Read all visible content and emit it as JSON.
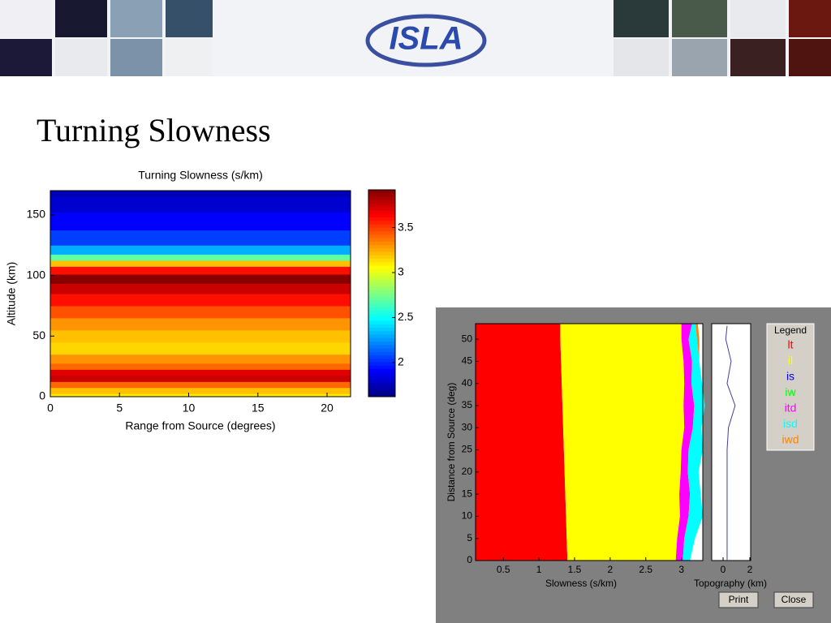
{
  "header": {
    "logo": "ISLA"
  },
  "slide_title": "Turning Slowness",
  "chart_data": [
    {
      "type": "heatmap",
      "title": "Turning Slowness (s/km)",
      "xlabel": "Range from Source (degrees)",
      "ylabel": "Altitude (km)",
      "xlim": [
        0,
        21.7
      ],
      "ylim": [
        0,
        170
      ],
      "xticks": [
        0,
        5,
        10,
        15,
        20
      ],
      "yticks": [
        0,
        50,
        100,
        150
      ],
      "y": [
        0,
        5,
        10,
        15,
        20,
        25,
        30,
        40,
        50,
        60,
        70,
        80,
        90,
        97,
        105,
        110,
        115,
        120,
        130,
        145,
        160,
        170
      ],
      "values": [
        3.1,
        3.2,
        3.4,
        3.75,
        3.7,
        3.4,
        3.3,
        3.15,
        3.2,
        3.3,
        3.45,
        3.6,
        3.75,
        3.9,
        3.6,
        3.2,
        2.7,
        2.3,
        2.05,
        1.9,
        1.8,
        1.75
      ],
      "colormap": "jet",
      "clim": [
        1.62,
        3.92
      ],
      "cticks": [
        2,
        2.5,
        3,
        3.5
      ]
    },
    {
      "type": "stacked_area",
      "xlabel": "Slowness (s/km)",
      "ylabel": "Distance from Source (deg)",
      "xlim": [
        0.11,
        3.3
      ],
      "ylim": [
        0,
        53.5
      ],
      "xticks": [
        0.5,
        1,
        1.5,
        2,
        2.5,
        3
      ],
      "yticks": [
        0,
        5,
        10,
        15,
        20,
        25,
        30,
        35,
        40,
        45,
        50
      ],
      "legend_title": "Legend",
      "y": [
        0,
        5,
        10,
        15,
        20,
        25,
        30,
        35,
        40,
        45,
        50,
        53
      ],
      "series": [
        {
          "name": "lt",
          "color": "#ff0000",
          "values": [
            1.29,
            1.28,
            1.27,
            1.26,
            1.25,
            1.24,
            1.23,
            1.22,
            1.21,
            1.2,
            1.19,
            1.19
          ]
        },
        {
          "name": "il",
          "color": "#ffff00",
          "values": [
            1.52,
            1.55,
            1.6,
            1.6,
            1.63,
            1.65,
            1.7,
            1.7,
            1.72,
            1.72,
            1.7,
            1.7
          ]
        },
        {
          "name": "is",
          "color": "#0000ff",
          "values": [
            0,
            0,
            0,
            0,
            0,
            0,
            0,
            0,
            0,
            0,
            0,
            0
          ]
        },
        {
          "name": "iw",
          "color": "#00ff00",
          "values": [
            0,
            0,
            0,
            0,
            0,
            0,
            0,
            0,
            0,
            0,
            0,
            0
          ]
        },
        {
          "name": "itd",
          "color": "#ff00ff",
          "values": [
            0.1,
            0.1,
            0.12,
            0.15,
            0.1,
            0.1,
            0.12,
            0.15,
            0.1,
            0.12,
            0.1,
            0.15
          ]
        },
        {
          "name": "isd",
          "color": "#00ffff",
          "values": [
            0.1,
            0.15,
            0.2,
            0.15,
            0.15,
            0.2,
            0.12,
            0.15,
            0.15,
            0.1,
            0.12,
            0.05
          ]
        },
        {
          "name": "iwd",
          "color": "#ff8000",
          "values": [
            0,
            0,
            0,
            0,
            0,
            0,
            0,
            0,
            0,
            0,
            0.03,
            0.03
          ]
        }
      ]
    },
    {
      "type": "line",
      "xlabel": "Topography (km)",
      "xlim": [
        -0.85,
        2.06
      ],
      "xticks": [
        0,
        2
      ],
      "ylim": [
        0,
        53.5
      ],
      "y": [
        0,
        5,
        10,
        15,
        20,
        25,
        30,
        35,
        40,
        45,
        50,
        53
      ],
      "values": [
        0.3,
        0.3,
        0.3,
        0.3,
        0.3,
        0.3,
        0.4,
        0.9,
        0.3,
        0.6,
        0.2,
        0.3
      ],
      "color": "#4040a0"
    }
  ],
  "buttons": [
    "Print",
    "Close"
  ]
}
